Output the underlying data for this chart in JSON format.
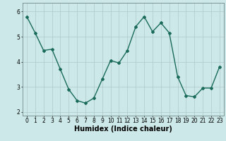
{
  "x": [
    0,
    1,
    2,
    3,
    4,
    5,
    6,
    7,
    8,
    9,
    10,
    11,
    12,
    13,
    14,
    15,
    16,
    17,
    18,
    19,
    20,
    21,
    22,
    23
  ],
  "y": [
    5.8,
    5.15,
    4.45,
    4.5,
    3.7,
    2.9,
    2.45,
    2.35,
    2.55,
    3.3,
    4.05,
    3.95,
    4.45,
    5.4,
    5.8,
    5.2,
    5.55,
    5.15,
    3.4,
    2.65,
    2.6,
    2.95,
    2.95,
    3.8
  ],
  "title": "",
  "xlabel": "Humidex (Indice chaleur)",
  "ylabel": "",
  "xlim": [
    -0.5,
    23.5
  ],
  "ylim": [
    1.85,
    6.35
  ],
  "yticks": [
    2,
    3,
    4,
    5,
    6
  ],
  "xticks": [
    0,
    1,
    2,
    3,
    4,
    5,
    6,
    7,
    8,
    9,
    10,
    11,
    12,
    13,
    14,
    15,
    16,
    17,
    18,
    19,
    20,
    21,
    22,
    23
  ],
  "line_color": "#1a6b5a",
  "marker": "D",
  "marker_size": 2.0,
  "bg_color": "#cce8e8",
  "grid_color": "#b0c8c8",
  "tick_fontsize": 5.5,
  "xlabel_fontsize": 7.0,
  "line_width": 1.0
}
